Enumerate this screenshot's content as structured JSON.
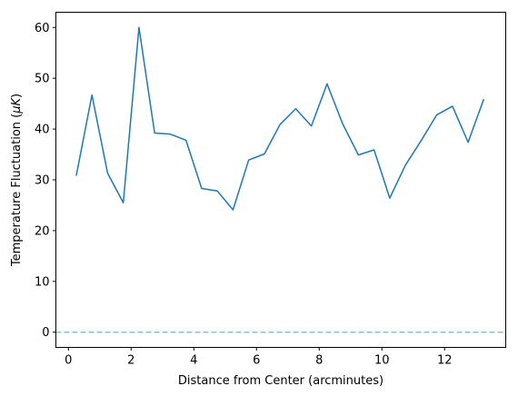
{
  "chart_data": {
    "type": "line",
    "title": "",
    "xlabel": "Distance from Center (arcminutes)",
    "ylabel_prefix": "Temperature Fluctuation (",
    "ylabel_unit": "μK",
    "ylabel_suffix": ")",
    "xlim": [
      -0.4,
      13.95
    ],
    "ylim": [
      -3,
      63
    ],
    "xticks": [
      0,
      2,
      4,
      6,
      8,
      10,
      12
    ],
    "yticks": [
      0,
      10,
      20,
      30,
      40,
      50,
      60
    ],
    "grid": false,
    "series": [
      {
        "color": "#1f77b4",
        "x": [
          0.25,
          0.75,
          1.25,
          1.75,
          2.25,
          2.75,
          3.25,
          3.75,
          4.25,
          4.75,
          5.25,
          5.75,
          6.25,
          6.75,
          7.25,
          7.75,
          8.25,
          8.75,
          9.25,
          9.75,
          10.25,
          10.75,
          11.25,
          11.75,
          12.25,
          12.75,
          13.25
        ],
        "values": [
          30.8,
          46.7,
          31.3,
          25.5,
          60.0,
          39.2,
          39.0,
          37.8,
          28.3,
          27.8,
          24.1,
          33.9,
          35.1,
          40.9,
          44.0,
          40.6,
          48.9,
          41.0,
          34.9,
          35.9,
          26.4,
          32.9,
          37.7,
          42.8,
          44.5,
          37.4,
          45.9
        ]
      }
    ],
    "reference_line": {
      "y": 0,
      "style": "dashed",
      "color": "#1f77b4",
      "opacity": 0.5
    }
  }
}
